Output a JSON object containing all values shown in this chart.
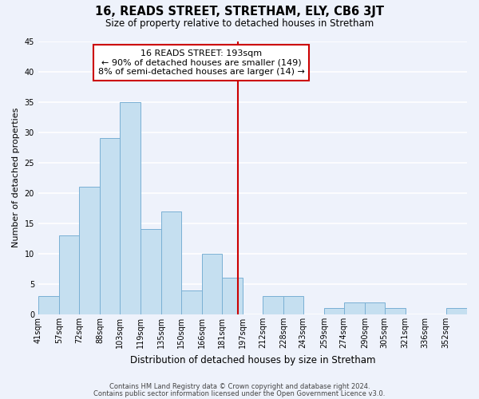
{
  "title": "16, READS STREET, STRETHAM, ELY, CB6 3JT",
  "subtitle": "Size of property relative to detached houses in Stretham",
  "xlabel": "Distribution of detached houses by size in Stretham",
  "ylabel": "Number of detached properties",
  "footer_line1": "Contains HM Land Registry data © Crown copyright and database right 2024.",
  "footer_line2": "Contains public sector information licensed under the Open Government Licence v3.0.",
  "bin_labels": [
    "41sqm",
    "57sqm",
    "72sqm",
    "88sqm",
    "103sqm",
    "119sqm",
    "135sqm",
    "150sqm",
    "166sqm",
    "181sqm",
    "197sqm",
    "212sqm",
    "228sqm",
    "243sqm",
    "259sqm",
    "274sqm",
    "290sqm",
    "305sqm",
    "321sqm",
    "336sqm",
    "352sqm"
  ],
  "bin_edges": [
    41,
    57,
    72,
    88,
    103,
    119,
    135,
    150,
    166,
    181,
    197,
    212,
    228,
    243,
    259,
    274,
    290,
    305,
    321,
    336,
    352,
    368
  ],
  "bar_heights": [
    3,
    13,
    21,
    29,
    35,
    14,
    17,
    4,
    10,
    6,
    0,
    3,
    3,
    0,
    1,
    2,
    2,
    1,
    0,
    0,
    1
  ],
  "bar_color": "#c5dff0",
  "bar_edge_color": "#7ab0d4",
  "property_value": 193,
  "vline_color": "#cc0000",
  "annotation_title": "16 READS STREET: 193sqm",
  "annotation_line1": "← 90% of detached houses are smaller (149)",
  "annotation_line2": "8% of semi-detached houses are larger (14) →",
  "annotation_box_facecolor": "#ffffff",
  "annotation_box_edgecolor": "#cc0000",
  "ylim": [
    0,
    45
  ],
  "yticks": [
    0,
    5,
    10,
    15,
    20,
    25,
    30,
    35,
    40,
    45
  ],
  "background_color": "#eef2fb",
  "grid_color": "#ffffff",
  "title_fontsize": 10.5,
  "subtitle_fontsize": 8.5,
  "ylabel_fontsize": 8,
  "xlabel_fontsize": 8.5,
  "tick_fontsize": 7,
  "annotation_fontsize": 8,
  "footer_fontsize": 6
}
